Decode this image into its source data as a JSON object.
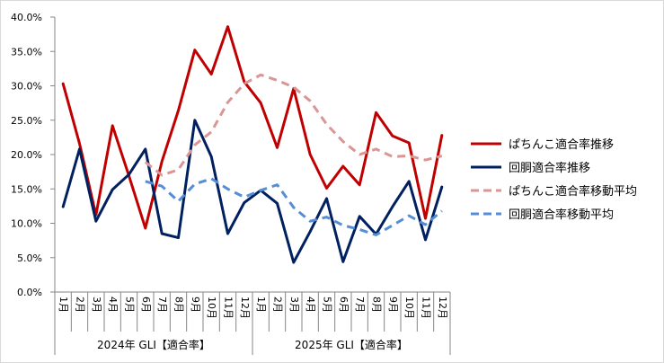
{
  "chart_data": {
    "type": "line",
    "title": "",
    "xlabel": "",
    "ylabel": "",
    "ylim": [
      0,
      40
    ],
    "yticks": [
      "0.0%",
      "5.0%",
      "10.0%",
      "15.0%",
      "20.0%",
      "25.0%",
      "30.0%",
      "35.0%",
      "40.0%"
    ],
    "grid": false,
    "legend_position": "right",
    "categories": [
      "1月",
      "2月",
      "3月",
      "4月",
      "5月",
      "6月",
      "7月",
      "8月",
      "9月",
      "10月",
      "11月",
      "12月",
      "1月",
      "2月",
      "3月",
      "4月",
      "5月",
      "6月",
      "7月",
      "8月",
      "9月",
      "10月",
      "11月",
      "12月"
    ],
    "groups": [
      {
        "label": "2024年 GLI【適合率】",
        "count": 12
      },
      {
        "label": "2025年 GLI【適合率】",
        "count": 12
      }
    ],
    "series": [
      {
        "name": "ぱちんこ適合率推移",
        "color": "#C00000",
        "dash": "solid",
        "values": [
          30.3,
          21.6,
          11.2,
          24.2,
          16.9,
          9.3,
          19.0,
          26.4,
          35.2,
          31.7,
          38.6,
          30.6,
          27.5,
          21.0,
          29.6,
          20.0,
          15.1,
          18.3,
          15.6,
          26.1,
          22.7,
          21.7,
          10.7,
          22.8
        ]
      },
      {
        "name": "回胴適合率推移",
        "color": "#002060",
        "dash": "solid",
        "values": [
          12.4,
          20.8,
          10.3,
          14.9,
          17.1,
          20.8,
          8.5,
          7.9,
          25.0,
          19.7,
          8.5,
          13.0,
          14.8,
          12.9,
          4.3,
          8.8,
          13.6,
          4.4,
          11.0,
          8.4,
          12.4,
          16.1,
          7.6,
          15.3
        ]
      },
      {
        "name": "ぱちんこ適合率移動平均",
        "color": "#DA9694",
        "dash": "dashed",
        "values": [
          null,
          null,
          null,
          null,
          null,
          18.9,
          17.0,
          17.8,
          21.4,
          23.3,
          27.6,
          30.3,
          31.6,
          30.8,
          29.8,
          27.8,
          24.4,
          21.9,
          20.0,
          20.8,
          19.7,
          19.8,
          19.2,
          19.8
        ]
      },
      {
        "name": "回胴適合率移動平均",
        "color": "#558ED5",
        "dash": "dashed",
        "values": [
          null,
          null,
          null,
          null,
          null,
          16.1,
          15.4,
          13.2,
          15.7,
          16.5,
          15.0,
          13.8,
          14.8,
          15.6,
          12.3,
          10.3,
          10.9,
          9.7,
          9.1,
          8.3,
          9.7,
          11.1,
          9.8,
          11.8
        ]
      }
    ]
  }
}
